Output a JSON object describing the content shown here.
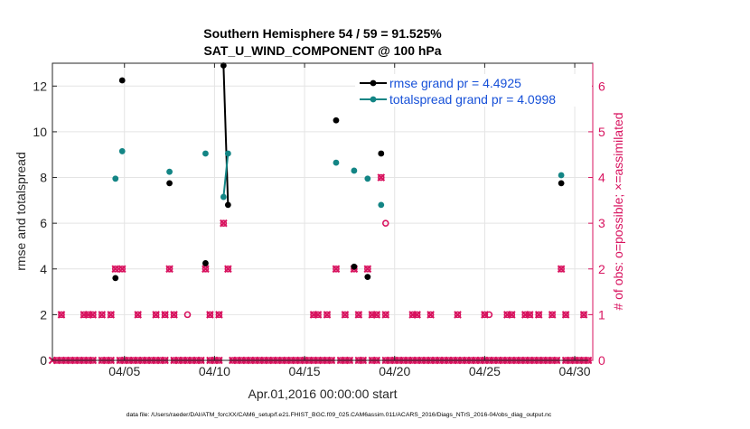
{
  "chart_data": {
    "type": "scatter",
    "title": "Southern Hemisphere 54 / 59 = 91.525%",
    "subtitle": "SAT_U_WIND_COMPONENT @ 100 hPa",
    "xlabel": "Apr.01,2016 00:00:00 start",
    "ylabel": "rmse and totalspread",
    "ylabel_right": "# of obs: o=possible; ×=assimilated",
    "footer": "data file: /Users/raeder/DAI/ATM_forcXX/CAM6_setup/f.e21.FHIST_BGC.f09_025.CAM6assim.011/ACARS_2016/Diags_NTrS_2016-04/obs_diag_output.nc",
    "x_range": [
      1.0,
      31.0
    ],
    "ylim": [
      0,
      13
    ],
    "ylim_right": [
      0,
      6.5
    ],
    "x_ticks": [
      5,
      10,
      15,
      20,
      25,
      30
    ],
    "x_tick_labels": [
      "04/05",
      "04/10",
      "04/15",
      "04/20",
      "04/25",
      "04/30"
    ],
    "y_ticks": [
      0,
      2,
      4,
      6,
      8,
      10,
      12
    ],
    "y_tick_labels": [
      "0",
      "2",
      "4",
      "6",
      "8",
      "10",
      "12"
    ],
    "y2_ticks": [
      0,
      1,
      2,
      3,
      4,
      5,
      6
    ],
    "y2_tick_labels": [
      "0",
      "1",
      "2",
      "3",
      "4",
      "5",
      "6"
    ],
    "grid": true,
    "legend_position": "top-right",
    "colors": {
      "rmse": "#000000",
      "totalspread": "#138585",
      "obs": "#d8135f",
      "legend_text": "#1650d8",
      "grid": "#e4e4e4",
      "axis": "#262626"
    },
    "series": [
      {
        "name": "rmse grand pr = 4.4925",
        "color": "#000000",
        "segments": [
          [
            [
              4.5,
              3.6
            ]
          ],
          [
            [
              4.875,
              12.25
            ]
          ],
          [
            [
              7.5,
              7.75
            ]
          ],
          [
            [
              9.5,
              4.25
            ]
          ],
          [
            [
              10.5,
              12.9
            ],
            [
              10.75,
              6.8
            ]
          ],
          [
            [
              16.75,
              10.5
            ]
          ],
          [
            [
              17.75,
              4.1
            ]
          ],
          [
            [
              18.5,
              3.65
            ]
          ],
          [
            [
              19.25,
              9.05
            ]
          ],
          [
            [
              29.25,
              7.75
            ]
          ]
        ]
      },
      {
        "name": "totalspread grand pr = 4.0998",
        "color": "#138585",
        "segments": [
          [
            [
              4.5,
              7.95
            ]
          ],
          [
            [
              4.875,
              9.15
            ]
          ],
          [
            [
              7.5,
              8.25
            ]
          ],
          [
            [
              9.5,
              9.05
            ]
          ],
          [
            [
              10.5,
              7.15
            ],
            [
              10.75,
              9.05
            ]
          ],
          [
            [
              16.75,
              8.65
            ]
          ],
          [
            [
              17.75,
              8.3
            ]
          ],
          [
            [
              18.5,
              7.95
            ]
          ],
          [
            [
              19.25,
              6.8
            ]
          ],
          [
            [
              29.25,
              8.1
            ]
          ]
        ]
      }
    ],
    "obs_possible": [
      [
        1.25,
        0
      ],
      [
        1.5,
        0
      ],
      [
        1.75,
        0
      ],
      [
        2.0,
        0
      ],
      [
        2.25,
        0
      ],
      [
        2.5,
        0
      ],
      [
        2.75,
        0
      ],
      [
        3.0,
        0
      ],
      [
        3.25,
        0
      ],
      [
        3.75,
        0
      ],
      [
        4.0,
        0
      ],
      [
        4.25,
        0
      ],
      [
        4.75,
        0
      ],
      [
        5.0,
        0
      ],
      [
        5.25,
        0
      ],
      [
        5.5,
        0
      ],
      [
        5.75,
        0
      ],
      [
        6.0,
        0
      ],
      [
        6.25,
        0
      ],
      [
        6.5,
        0
      ],
      [
        6.75,
        0
      ],
      [
        7.0,
        0
      ],
      [
        7.25,
        0
      ],
      [
        7.75,
        0
      ],
      [
        8.0,
        0
      ],
      [
        8.25,
        0
      ],
      [
        8.5,
        0
      ],
      [
        8.75,
        0
      ],
      [
        9.0,
        0
      ],
      [
        9.25,
        0
      ],
      [
        9.75,
        0
      ],
      [
        10.0,
        0
      ],
      [
        10.25,
        0
      ],
      [
        11.0,
        0
      ],
      [
        11.25,
        0
      ],
      [
        11.5,
        0
      ],
      [
        11.75,
        0
      ],
      [
        12.0,
        0
      ],
      [
        12.25,
        0
      ],
      [
        12.5,
        0
      ],
      [
        12.75,
        0
      ],
      [
        13.0,
        0
      ],
      [
        13.25,
        0
      ],
      [
        13.5,
        0
      ],
      [
        13.75,
        0
      ],
      [
        14.0,
        0
      ],
      [
        14.25,
        0
      ],
      [
        14.5,
        0
      ],
      [
        14.75,
        0
      ],
      [
        15.0,
        0
      ],
      [
        15.25,
        0
      ],
      [
        15.5,
        0
      ],
      [
        15.75,
        0
      ],
      [
        16.0,
        0
      ],
      [
        16.25,
        0
      ],
      [
        16.5,
        0
      ],
      [
        17.0,
        0
      ],
      [
        17.25,
        0
      ],
      [
        17.5,
        0
      ],
      [
        18.0,
        0
      ],
      [
        18.25,
        0
      ],
      [
        18.75,
        0
      ],
      [
        19.0,
        0
      ],
      [
        19.5,
        0
      ],
      [
        19.75,
        0
      ],
      [
        20.0,
        0
      ],
      [
        20.25,
        0
      ],
      [
        20.5,
        0
      ],
      [
        20.75,
        0
      ],
      [
        21.0,
        0
      ],
      [
        21.25,
        0
      ],
      [
        21.5,
        0
      ],
      [
        21.75,
        0
      ],
      [
        22.0,
        0
      ],
      [
        22.25,
        0
      ],
      [
        22.5,
        0
      ],
      [
        22.75,
        0
      ],
      [
        23.0,
        0
      ],
      [
        23.25,
        0
      ],
      [
        23.5,
        0
      ],
      [
        23.75,
        0
      ],
      [
        24.0,
        0
      ],
      [
        24.25,
        0
      ],
      [
        24.5,
        0
      ],
      [
        24.75,
        0
      ],
      [
        25.0,
        0
      ],
      [
        25.25,
        0
      ],
      [
        25.5,
        0
      ],
      [
        25.75,
        0
      ],
      [
        26.0,
        0
      ],
      [
        26.25,
        0
      ],
      [
        26.5,
        0
      ],
      [
        26.75,
        0
      ],
      [
        27.0,
        0
      ],
      [
        27.25,
        0
      ],
      [
        27.5,
        0
      ],
      [
        27.75,
        0
      ],
      [
        28.0,
        0
      ],
      [
        28.25,
        0
      ],
      [
        28.5,
        0
      ],
      [
        28.75,
        0
      ],
      [
        29.0,
        0
      ],
      [
        29.5,
        0
      ],
      [
        29.75,
        0
      ],
      [
        30.0,
        0
      ],
      [
        30.25,
        0
      ],
      [
        30.5,
        0
      ],
      [
        30.75,
        0
      ],
      [
        1.5,
        1
      ],
      [
        2.75,
        1
      ],
      [
        3.0,
        1
      ],
      [
        3.25,
        1
      ],
      [
        3.75,
        1
      ],
      [
        4.25,
        1
      ],
      [
        5.75,
        1
      ],
      [
        6.75,
        1
      ],
      [
        7.25,
        1
      ],
      [
        7.75,
        1
      ],
      [
        8.5,
        1
      ],
      [
        9.75,
        1
      ],
      [
        10.25,
        1
      ],
      [
        15.5,
        1
      ],
      [
        15.75,
        1
      ],
      [
        16.25,
        1
      ],
      [
        17.25,
        1
      ],
      [
        18.0,
        1
      ],
      [
        18.75,
        1
      ],
      [
        19.0,
        1
      ],
      [
        19.5,
        1
      ],
      [
        21.0,
        1
      ],
      [
        21.25,
        1
      ],
      [
        22.0,
        1
      ],
      [
        23.5,
        1
      ],
      [
        25.0,
        1
      ],
      [
        25.25,
        1
      ],
      [
        26.25,
        1
      ],
      [
        26.5,
        1
      ],
      [
        27.25,
        1
      ],
      [
        27.5,
        1
      ],
      [
        28.0,
        1
      ],
      [
        28.75,
        1
      ],
      [
        29.5,
        1
      ],
      [
        30.5,
        1
      ],
      [
        4.5,
        2
      ],
      [
        4.875,
        2
      ],
      [
        7.5,
        2
      ],
      [
        9.5,
        2
      ],
      [
        10.75,
        2
      ],
      [
        16.75,
        2
      ],
      [
        17.75,
        2
      ],
      [
        18.5,
        2
      ],
      [
        29.25,
        2
      ],
      [
        10.5,
        3
      ],
      [
        19.5,
        3
      ],
      [
        19.25,
        4
      ]
    ],
    "obs_assimilated": [
      [
        1.0,
        0
      ],
      [
        1.25,
        0
      ],
      [
        1.5,
        0
      ],
      [
        1.75,
        0
      ],
      [
        2.0,
        0
      ],
      [
        2.25,
        0
      ],
      [
        2.5,
        0
      ],
      [
        2.75,
        0
      ],
      [
        3.0,
        0
      ],
      [
        3.25,
        0
      ],
      [
        3.75,
        0
      ],
      [
        4.0,
        0
      ],
      [
        4.25,
        0
      ],
      [
        4.75,
        0
      ],
      [
        5.0,
        0
      ],
      [
        5.25,
        0
      ],
      [
        5.5,
        0
      ],
      [
        5.75,
        0
      ],
      [
        6.0,
        0
      ],
      [
        6.25,
        0
      ],
      [
        6.5,
        0
      ],
      [
        6.75,
        0
      ],
      [
        7.0,
        0
      ],
      [
        7.25,
        0
      ],
      [
        7.75,
        0
      ],
      [
        8.0,
        0
      ],
      [
        8.25,
        0
      ],
      [
        8.5,
        0
      ],
      [
        8.75,
        0
      ],
      [
        9.0,
        0
      ],
      [
        9.25,
        0
      ],
      [
        9.75,
        0
      ],
      [
        10.0,
        0
      ],
      [
        10.25,
        0
      ],
      [
        11.0,
        0
      ],
      [
        11.25,
        0
      ],
      [
        11.5,
        0
      ],
      [
        11.75,
        0
      ],
      [
        12.0,
        0
      ],
      [
        12.25,
        0
      ],
      [
        12.5,
        0
      ],
      [
        12.75,
        0
      ],
      [
        13.0,
        0
      ],
      [
        13.25,
        0
      ],
      [
        13.5,
        0
      ],
      [
        13.75,
        0
      ],
      [
        14.0,
        0
      ],
      [
        14.25,
        0
      ],
      [
        14.5,
        0
      ],
      [
        14.75,
        0
      ],
      [
        15.0,
        0
      ],
      [
        15.25,
        0
      ],
      [
        15.5,
        0
      ],
      [
        15.75,
        0
      ],
      [
        16.0,
        0
      ],
      [
        16.25,
        0
      ],
      [
        16.5,
        0
      ],
      [
        17.0,
        0
      ],
      [
        17.25,
        0
      ],
      [
        17.5,
        0
      ],
      [
        18.0,
        0
      ],
      [
        18.25,
        0
      ],
      [
        18.75,
        0
      ],
      [
        19.0,
        0
      ],
      [
        19.5,
        0
      ],
      [
        19.75,
        0
      ],
      [
        20.0,
        0
      ],
      [
        20.25,
        0
      ],
      [
        20.5,
        0
      ],
      [
        20.75,
        0
      ],
      [
        21.0,
        0
      ],
      [
        21.25,
        0
      ],
      [
        21.5,
        0
      ],
      [
        21.75,
        0
      ],
      [
        22.0,
        0
      ],
      [
        22.25,
        0
      ],
      [
        22.5,
        0
      ],
      [
        22.75,
        0
      ],
      [
        23.0,
        0
      ],
      [
        23.25,
        0
      ],
      [
        23.5,
        0
      ],
      [
        23.75,
        0
      ],
      [
        24.0,
        0
      ],
      [
        24.25,
        0
      ],
      [
        24.5,
        0
      ],
      [
        24.75,
        0
      ],
      [
        25.0,
        0
      ],
      [
        25.25,
        0
      ],
      [
        25.5,
        0
      ],
      [
        25.75,
        0
      ],
      [
        26.0,
        0
      ],
      [
        26.25,
        0
      ],
      [
        26.5,
        0
      ],
      [
        26.75,
        0
      ],
      [
        27.0,
        0
      ],
      [
        27.25,
        0
      ],
      [
        27.5,
        0
      ],
      [
        27.75,
        0
      ],
      [
        28.0,
        0
      ],
      [
        28.25,
        0
      ],
      [
        28.5,
        0
      ],
      [
        28.75,
        0
      ],
      [
        29.0,
        0
      ],
      [
        29.5,
        0
      ],
      [
        29.75,
        0
      ],
      [
        30.0,
        0
      ],
      [
        30.25,
        0
      ],
      [
        30.5,
        0
      ],
      [
        30.75,
        0
      ],
      [
        1.5,
        1
      ],
      [
        2.75,
        1
      ],
      [
        3.0,
        1
      ],
      [
        3.25,
        1
      ],
      [
        3.75,
        1
      ],
      [
        4.25,
        1
      ],
      [
        5.75,
        1
      ],
      [
        6.75,
        1
      ],
      [
        7.25,
        1
      ],
      [
        7.75,
        1
      ],
      [
        9.75,
        1
      ],
      [
        10.25,
        1
      ],
      [
        15.5,
        1
      ],
      [
        15.75,
        1
      ],
      [
        16.25,
        1
      ],
      [
        17.25,
        1
      ],
      [
        18.0,
        1
      ],
      [
        18.75,
        1
      ],
      [
        19.0,
        1
      ],
      [
        19.5,
        1
      ],
      [
        21.0,
        1
      ],
      [
        21.25,
        1
      ],
      [
        22.0,
        1
      ],
      [
        23.5,
        1
      ],
      [
        25.0,
        1
      ],
      [
        26.25,
        1
      ],
      [
        26.5,
        1
      ],
      [
        27.25,
        1
      ],
      [
        27.5,
        1
      ],
      [
        28.0,
        1
      ],
      [
        28.75,
        1
      ],
      [
        29.5,
        1
      ],
      [
        30.5,
        1
      ],
      [
        4.5,
        2
      ],
      [
        4.875,
        2
      ],
      [
        7.5,
        2
      ],
      [
        9.5,
        2
      ],
      [
        10.75,
        2
      ],
      [
        16.75,
        2
      ],
      [
        17.75,
        2
      ],
      [
        18.5,
        2
      ],
      [
        29.25,
        2
      ],
      [
        10.5,
        3
      ],
      [
        19.25,
        4
      ]
    ]
  }
}
